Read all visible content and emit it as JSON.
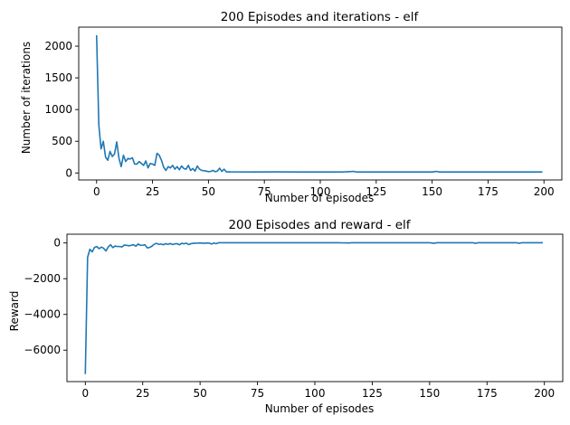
{
  "chart_data": [
    {
      "type": "line",
      "title": "200 Episodes and iterations - elf",
      "xlabel": "Number of episodes",
      "ylabel": "Number of iterations",
      "xlim": [
        -8,
        208
      ],
      "ylim": [
        -110,
        2300
      ],
      "xticks": [
        0,
        25,
        50,
        75,
        100,
        125,
        150,
        175,
        200
      ],
      "yticks": [
        0,
        500,
        1000,
        1500,
        2000
      ],
      "grid": false,
      "color": "#1f77b4",
      "x": [
        0,
        1,
        2,
        3,
        4,
        5,
        6,
        7,
        8,
        9,
        10,
        11,
        12,
        13,
        14,
        15,
        16,
        17,
        18,
        19,
        20,
        21,
        22,
        23,
        24,
        25,
        26,
        27,
        28,
        29,
        30,
        31,
        32,
        33,
        34,
        35,
        36,
        37,
        38,
        39,
        40,
        41,
        42,
        43,
        44,
        45,
        46,
        47,
        48,
        49,
        50,
        51,
        52,
        53,
        54,
        55,
        56,
        57,
        58,
        59,
        60,
        70,
        80,
        90,
        100,
        110,
        115,
        116,
        117,
        120,
        130,
        140,
        150,
        152,
        153,
        154,
        160,
        170,
        180,
        190,
        199
      ],
      "y": [
        2160,
        750,
        380,
        500,
        250,
        200,
        340,
        260,
        300,
        490,
        230,
        100,
        280,
        180,
        230,
        220,
        240,
        140,
        140,
        180,
        150,
        120,
        190,
        80,
        150,
        140,
        120,
        310,
        280,
        200,
        90,
        40,
        100,
        80,
        120,
        60,
        100,
        50,
        110,
        70,
        60,
        120,
        40,
        70,
        30,
        110,
        60,
        40,
        35,
        30,
        20,
        25,
        40,
        20,
        30,
        75,
        25,
        60,
        18,
        18,
        17,
        16,
        17,
        16,
        16,
        16,
        25,
        16,
        16,
        16,
        16,
        16,
        16,
        25,
        16,
        16,
        16,
        16,
        16,
        16,
        16
      ]
    },
    {
      "type": "line",
      "title": "200 Episodes and reward - elf",
      "xlabel": "Number of episodes",
      "ylabel": "Reward",
      "xlim": [
        -8,
        208
      ],
      "ylim": [
        -7760,
        490
      ],
      "xticks": [
        0,
        25,
        50,
        75,
        100,
        125,
        150,
        175,
        200
      ],
      "yticks": [
        -6000,
        -4000,
        -2000,
        0
      ],
      "grid": false,
      "color": "#1f77b4",
      "x": [
        0,
        1,
        2,
        3,
        4,
        5,
        6,
        7,
        8,
        9,
        10,
        11,
        12,
        13,
        14,
        15,
        16,
        17,
        18,
        19,
        20,
        21,
        22,
        23,
        24,
        25,
        26,
        27,
        28,
        29,
        30,
        31,
        32,
        33,
        34,
        35,
        36,
        37,
        38,
        39,
        40,
        41,
        42,
        43,
        44,
        45,
        46,
        47,
        48,
        49,
        50,
        51,
        52,
        53,
        54,
        55,
        56,
        57,
        58,
        59,
        60,
        70,
        80,
        90,
        100,
        110,
        115,
        116,
        117,
        120,
        130,
        140,
        150,
        152,
        153,
        154,
        160,
        169,
        170,
        171,
        180,
        188,
        189,
        190,
        199
      ],
      "y": [
        -7300,
        -800,
        -350,
        -500,
        -250,
        -200,
        -320,
        -230,
        -300,
        -450,
        -220,
        -100,
        -260,
        -170,
        -200,
        -200,
        -220,
        -120,
        -130,
        -160,
        -130,
        -100,
        -180,
        -60,
        -130,
        -130,
        -100,
        -280,
        -250,
        -180,
        -70,
        -20,
        -80,
        -60,
        -100,
        -40,
        -80,
        -30,
        -90,
        -50,
        -40,
        -100,
        -20,
        -50,
        -10,
        -90,
        -40,
        -20,
        -15,
        -10,
        0,
        -5,
        -20,
        0,
        -10,
        -60,
        -5,
        -40,
        10,
        10,
        10,
        10,
        10,
        10,
        10,
        10,
        0,
        10,
        10,
        10,
        10,
        10,
        10,
        -20,
        10,
        10,
        10,
        10,
        -20,
        10,
        10,
        10,
        -20,
        10,
        10
      ]
    }
  ]
}
